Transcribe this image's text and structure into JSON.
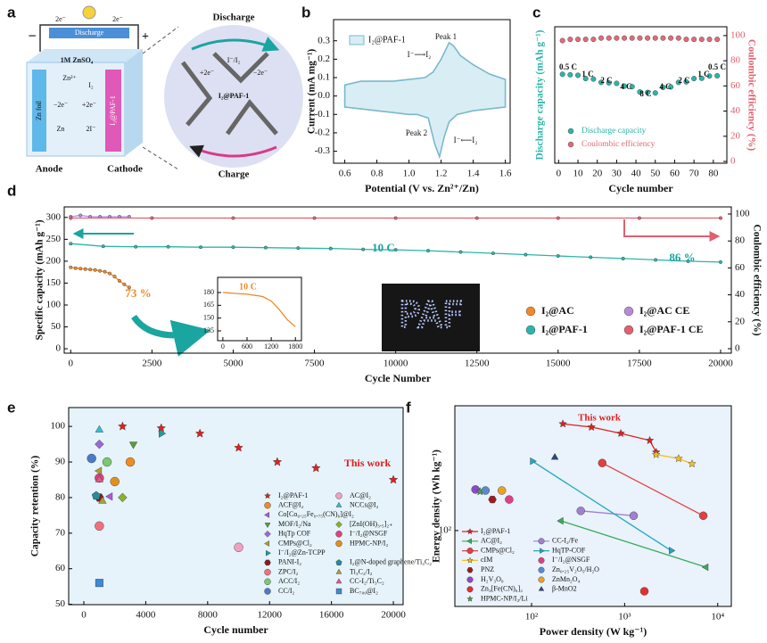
{
  "schematic": {
    "panel_label": "a",
    "electron_left": "2e⁻",
    "electron_right": "2e⁻",
    "circuit_label": "Discharge",
    "minus": "−",
    "plus": "+",
    "electrolyte": "1M ZnSO₄",
    "anode_material": "Zn foil",
    "cathode_material": "I₂@PAF-1",
    "anode": "Anode",
    "cathode": "Cathode",
    "zn_ion": "Zn²⁺",
    "iodine": "I₂",
    "anode_reaction": "−2e⁻",
    "cathode_reaction": "+2e⁻",
    "zn": "Zn",
    "iodide": "2I⁻",
    "redox_pair": "I⁻/I₂",
    "zoom_top": "Discharge",
    "zoom_bottom": "Charge",
    "zoom_center": "I₂@PAF-1",
    "zoom_gain": "+2e⁻",
    "zoom_loss": "−2e⁻"
  },
  "chart_data": [
    {
      "panel_label": "b",
      "type": "line",
      "x_label": "Potential (V vs. Zn²⁺/Zn)",
      "y_label": "Current (mA mg⁻¹)",
      "xlim": [
        0.53,
        1.63
      ],
      "ylim": [
        -0.365,
        0.415
      ],
      "xticks": [
        0.6,
        0.8,
        {
          "value": 1,
          "label": "1.0"
        },
        1.2,
        1.4,
        1.6
      ],
      "yticks": [
        -0.3,
        -0.2,
        -0.1,
        {
          "value": 0,
          "label": "0.0"
        },
        0.1,
        0.2,
        0.3
      ],
      "annotations": [
        "Peak 1",
        "Peak 2",
        "I⁻⟶I₂",
        "I⁻⟵I₂"
      ],
      "series": [
        {
          "name": "I₂@PAF-1",
          "color": "#7ab8cc",
          "fill": "#d8eef4",
          "x": [
            0.6,
            0.7,
            0.8,
            0.9,
            1.0,
            1.1,
            1.15,
            1.2,
            1.25,
            1.28,
            1.32,
            1.4,
            1.5,
            1.6,
            1.6,
            1.5,
            1.4,
            1.3,
            1.25,
            1.22,
            1.19,
            1.16,
            1.12,
            1.05,
            1.0,
            0.9,
            0.8,
            0.7,
            0.6
          ],
          "values": [
            0.06,
            0.08,
            0.08,
            0.08,
            0.09,
            0.1,
            0.13,
            0.2,
            0.29,
            0.27,
            0.22,
            0.17,
            0.12,
            0.09,
            -0.06,
            -0.07,
            -0.08,
            -0.1,
            -0.14,
            -0.22,
            -0.33,
            -0.26,
            -0.12,
            -0.1,
            -0.1,
            -0.09,
            -0.08,
            -0.07,
            -0.06
          ]
        }
      ]
    },
    {
      "panel_label": "c",
      "type": "scatter",
      "x_label": "Cycle number",
      "y_label": "Discharge capacity (mAh g⁻¹)",
      "y2_label": "Coulombic efficiency (%)",
      "xlim": [
        -2,
        87
      ],
      "ylim": [
        -20,
        520
      ],
      "y2lim": [
        -1.4,
        107
      ],
      "xticks": [
        0,
        10,
        20,
        30,
        40,
        50,
        60,
        70,
        80
      ],
      "y2ticks": [
        0,
        20,
        40,
        60,
        80,
        100
      ],
      "annotations": [
        "0.5 C",
        "1 C",
        "2 C",
        "4 C",
        "8 C",
        "4 C",
        "2 C",
        "1 C",
        "0.5 C"
      ],
      "series": [
        {
          "name": "Discharge capacity",
          "color": "#2bb5a8",
          "marker": "circle",
          "x": [
            2,
            6,
            10,
            14,
            18,
            22,
            26,
            30,
            34,
            38,
            42,
            46,
            50,
            54,
            58,
            62,
            66,
            70,
            74,
            78,
            82
          ],
          "values": [
            332,
            330,
            328,
            315,
            313,
            300,
            298,
            296,
            285,
            283,
            262,
            260,
            258,
            280,
            282,
            300,
            302,
            315,
            316,
            325,
            326
          ]
        },
        {
          "name": "Coulombic efficiency",
          "color": "#e06a7a",
          "marker": "circle",
          "axis": "y2",
          "x": [
            2,
            6,
            10,
            14,
            18,
            22,
            26,
            30,
            34,
            38,
            42,
            46,
            50,
            54,
            58,
            62,
            66,
            70,
            74,
            78,
            82
          ],
          "values": [
            96,
            97,
            97,
            97,
            97,
            98,
            98,
            98,
            98,
            98,
            98,
            98,
            98,
            98,
            98,
            98,
            97,
            97,
            97,
            97,
            97
          ]
        }
      ]
    },
    {
      "panel_label": "d",
      "type": "line",
      "x_label": "Cycle Number",
      "y_label": "Specific capacity (mAh g⁻¹)",
      "y2_label": "Coulombic efficiency (%)",
      "xlim": [
        -200,
        20330
      ],
      "ylim": [
        -10,
        324
      ],
      "y2lim": [
        -3.3,
        105.3
      ],
      "xticks": [
        0,
        2500,
        5000,
        7500,
        10000,
        12500,
        15000,
        17500,
        20000
      ],
      "yticks": [
        0,
        50,
        100,
        150,
        200,
        250,
        300
      ],
      "y2ticks": [
        0,
        20,
        40,
        60,
        80,
        100
      ],
      "annotations": [
        "73 %",
        "10 C",
        "86 %"
      ],
      "photo_text": "PAF",
      "series": [
        {
          "name": "I₂@AC",
          "color": "#ee8a2a",
          "marker": "circle",
          "x": [
            0,
            150,
            300,
            450,
            600,
            750,
            900,
            1050,
            1200,
            1350,
            1500,
            1650,
            1800
          ],
          "values": [
            186,
            184,
            183,
            182,
            181,
            180,
            178,
            176,
            172,
            165,
            155,
            147,
            140
          ]
        },
        {
          "name": "I₂@PAF-1",
          "color": "#2bb5a8",
          "marker": "circle",
          "x": [
            0,
            1000,
            2000,
            3000,
            4000,
            5000,
            6000,
            7000,
            8000,
            9000,
            10000,
            11000,
            12000,
            13000,
            14000,
            15000,
            16000,
            17000,
            18000,
            19000,
            20000
          ],
          "values": [
            240,
            234,
            233,
            233,
            232,
            232,
            231,
            230,
            229,
            227,
            226,
            224,
            221,
            218,
            215,
            212,
            209,
            206,
            203,
            200,
            198
          ]
        },
        {
          "name": "I₂@AC CE",
          "color": "#b58ad8",
          "marker": "circle",
          "axis": "y2",
          "x": [
            0,
            300,
            600,
            900,
            1200,
            1500,
            1800
          ],
          "values": [
            98,
            99,
            98,
            98,
            98,
            98,
            98
          ]
        },
        {
          "name": "I₂@PAF-1 CE",
          "color": "#e0606e",
          "marker": "circle",
          "axis": "y2",
          "x": [
            0,
            2500,
            5000,
            7500,
            10000,
            12500,
            15000,
            17500,
            20000
          ],
          "values": [
            97,
            97,
            97,
            97,
            97,
            97,
            97,
            97,
            97
          ]
        }
      ],
      "inset": {
        "type": "line",
        "annotation": "10 C",
        "xlim": [
          -130,
          1950
        ],
        "ylim": [
          123.5,
          197.8
        ],
        "xticks": [
          0,
          600,
          1200,
          1800
        ],
        "yticks": [
          135,
          150,
          165,
          180
        ],
        "series": [
          {
            "color": "#ee8a2a",
            "x": [
              0,
              300,
              600,
              900,
              1000,
              1200,
              1400,
              1600,
              1800
            ],
            "values": [
              180,
              179,
              178,
              176,
              175,
              170,
              160,
              148,
              140
            ]
          }
        ]
      }
    },
    {
      "panel_label": "e",
      "type": "scatter",
      "x_label": "Cycle number",
      "y_label": "Capacity retention (%)",
      "xlim": [
        -980,
        20630
      ],
      "ylim": [
        49.9,
        105.3
      ],
      "background": "#e6f3fa",
      "xticks": [
        0,
        4000,
        8000,
        12000,
        16000,
        20000
      ],
      "yticks": [
        50,
        60,
        70,
        80,
        90,
        100
      ],
      "annotation": "This work",
      "series": [
        {
          "name": "I₂@PAF-1",
          "color": "#e02020",
          "marker": "star",
          "x": [
            2500,
            5000,
            7500,
            10000,
            12500,
            15000,
            20000
          ],
          "values": [
            100,
            99.5,
            98,
            94,
            90,
            88.3,
            85
          ]
        },
        {
          "name": "ACF@I₂",
          "color": "#f08a24",
          "marker": "circle",
          "x": [
            3000
          ],
          "values": [
            90
          ]
        },
        {
          "name": "Co[Co₀.₂₅Fe₀.₇₅(CN)₆]@I₂",
          "color": "#b05ad8",
          "marker": "triangle-left",
          "x": [
            1700
          ],
          "values": [
            80.3
          ]
        },
        {
          "name": "MOF/I₂/Na",
          "color": "#5a9a3a",
          "marker": "triangle-down",
          "x": [
            3200
          ],
          "values": [
            95
          ]
        },
        {
          "name": "HqTp COF",
          "color": "#9a6ad0",
          "marker": "diamond",
          "x": [
            1000
          ],
          "values": [
            95
          ]
        },
        {
          "name": "CMPs@Cl₂",
          "color": "#b0a030",
          "marker": "triangle-left",
          "x": [
            1000
          ],
          "values": [
            87.5
          ]
        },
        {
          "name": "I⁻/I₂@Zn-TCPP",
          "color": "#1aa0a0",
          "marker": "triangle-right",
          "x": [
            5000
          ],
          "values": [
            98
          ]
        },
        {
          "name": "PANI-I₂",
          "color": "#8a1a1a",
          "marker": "hexagon",
          "x": [
            1000
          ],
          "values": [
            80
          ]
        },
        {
          "name": "ZPC/I₂",
          "color": "#f07080",
          "marker": "circle",
          "x": [
            1000
          ],
          "values": [
            72
          ]
        },
        {
          "name": "ACC/I₂",
          "color": "#7ac870",
          "marker": "circle",
          "x": [
            1500
          ],
          "values": [
            90
          ]
        },
        {
          "name": "CC/I₂",
          "color": "#4a7ac8",
          "marker": "circle",
          "x": [
            500
          ],
          "values": [
            91
          ]
        },
        {
          "name": "AC@I₂",
          "color": "#f0a0c0",
          "marker": "circle",
          "x": [
            10000
          ],
          "values": [
            66
          ]
        },
        {
          "name": "NCCs@I₂",
          "color": "#30c0d0",
          "marker": "triangle-up",
          "x": [
            1000
          ],
          "values": [
            99
          ]
        },
        {
          "name": "[ZnI(OH)₃.₅]₂₊",
          "color": "#8ab030",
          "marker": "diamond",
          "x": [
            2500
          ],
          "values": [
            80
          ]
        },
        {
          "name": "I⁻/I₂@NSGF",
          "color": "#e04080",
          "marker": "circle",
          "x": [
            1000
          ],
          "values": [
            85.5
          ]
        },
        {
          "name": "HPMC-NP/I₂",
          "color": "#e09020",
          "marker": "circle",
          "x": [
            2000
          ],
          "values": [
            84.5
          ]
        },
        {
          "name": "I₂@N-doped graphene/Ti₃C₂",
          "color": "#2a8a9a",
          "marker": "pentagon",
          "x": [
            800
          ],
          "values": [
            80.5
          ]
        },
        {
          "name": "Ti₃C₂/I₂",
          "color": "#a0a040",
          "marker": "triangle-up",
          "x": [
            1200
          ],
          "values": [
            79
          ]
        },
        {
          "name": "CC-I₂/Ti₃C₂",
          "color": "#e05a8a",
          "marker": "triangle-up",
          "x": [
            1000
          ],
          "values": [
            85
          ]
        },
        {
          "name": "BC₇₀₀@I₂",
          "color": "#3a8ad8",
          "marker": "square",
          "x": [
            1000
          ],
          "values": [
            56
          ]
        }
      ]
    },
    {
      "panel_label": "f",
      "type": "line",
      "x_label": "Power density (W kg⁻¹)",
      "y_label": "Energy density (Wh kg⁻¹)",
      "log_x": true,
      "log_y": true,
      "xlim": [
        15,
        14000
      ],
      "ylim": [
        41,
        433
      ],
      "background": "#eaf2fb",
      "xticks": [
        {
          "value": 100,
          "label": "10²"
        },
        {
          "value": 1000,
          "label": "10³"
        },
        {
          "value": 10000,
          "label": "10⁴"
        }
      ],
      "yticks": [
        {
          "value": 100,
          "label": "10²"
        }
      ],
      "annotation": "This work",
      "series": [
        {
          "name": "I₂@PAF-1",
          "color": "#e02020",
          "marker": "star",
          "x": [
            217,
            440,
            910,
            1860,
            2180
          ],
          "values": [
            350,
            337,
            313,
            288,
            251
          ]
        },
        {
          "name": "AC@I₂",
          "color": "#3aaa5a",
          "marker": "triangle-left",
          "x": [
            208,
            7500
          ],
          "values": [
            112,
            65
          ]
        },
        {
          "name": "CMPs@Cl₂",
          "color": "#e04040",
          "marker": "circle",
          "x": [
            575,
            7000
          ],
          "values": [
            221,
            119
          ]
        },
        {
          "name": "cIM",
          "color": "#f0c020",
          "marker": "star",
          "x": [
            2180,
            3800,
            5300
          ],
          "values": [
            244,
            233,
            219
          ]
        },
        {
          "name": "PNZ",
          "color": "#a01a1a",
          "marker": "hexagon",
          "x": [
            38
          ],
          "values": [
            144
          ]
        },
        {
          "name": "H₂V₃O₈",
          "color": "#8a4ac8",
          "marker": "circle",
          "x": [
            25
          ],
          "values": [
            162
          ]
        },
        {
          "name": "Zn₃[Fe(CN)₆]₂",
          "color": "#e03030",
          "marker": "circle",
          "x": [
            1630
          ],
          "values": [
            49
          ]
        },
        {
          "name": "HPMC-NP/I₂/Li",
          "color": "#4aa04a",
          "marker": "star",
          "x": [
            28
          ],
          "values": [
            158
          ]
        },
        {
          "name": "CC-I₂/Fe",
          "color": "#a080d0",
          "marker": "circle",
          "x": [
            338,
            1250
          ],
          "values": [
            126,
            119
          ]
        },
        {
          "name": "HqTP-COF",
          "color": "#20a8c0",
          "marker": "triangle-right",
          "x": [
            102,
            3160
          ],
          "values": [
            226,
            79
          ]
        },
        {
          "name": "I⁻/I₂@NSGF",
          "color": "#e04080",
          "marker": "circle",
          "x": [
            57.5
          ],
          "values": [
            144
          ]
        },
        {
          "name": "Zn₀.₂₅V₂O₅/H₂O",
          "color": "#5a8ad0",
          "marker": "circle",
          "x": [
            32
          ],
          "values": [
            160
          ]
        },
        {
          "name": "ZnMn₂O₄",
          "color": "#f0a020",
          "marker": "circle",
          "x": [
            48
          ],
          "values": [
            160
          ]
        },
        {
          "name": "β-MnO2",
          "color": "#2a4a7a",
          "marker": "triangle-up",
          "x": [
            178
          ],
          "values": [
            236
          ]
        }
      ]
    }
  ]
}
